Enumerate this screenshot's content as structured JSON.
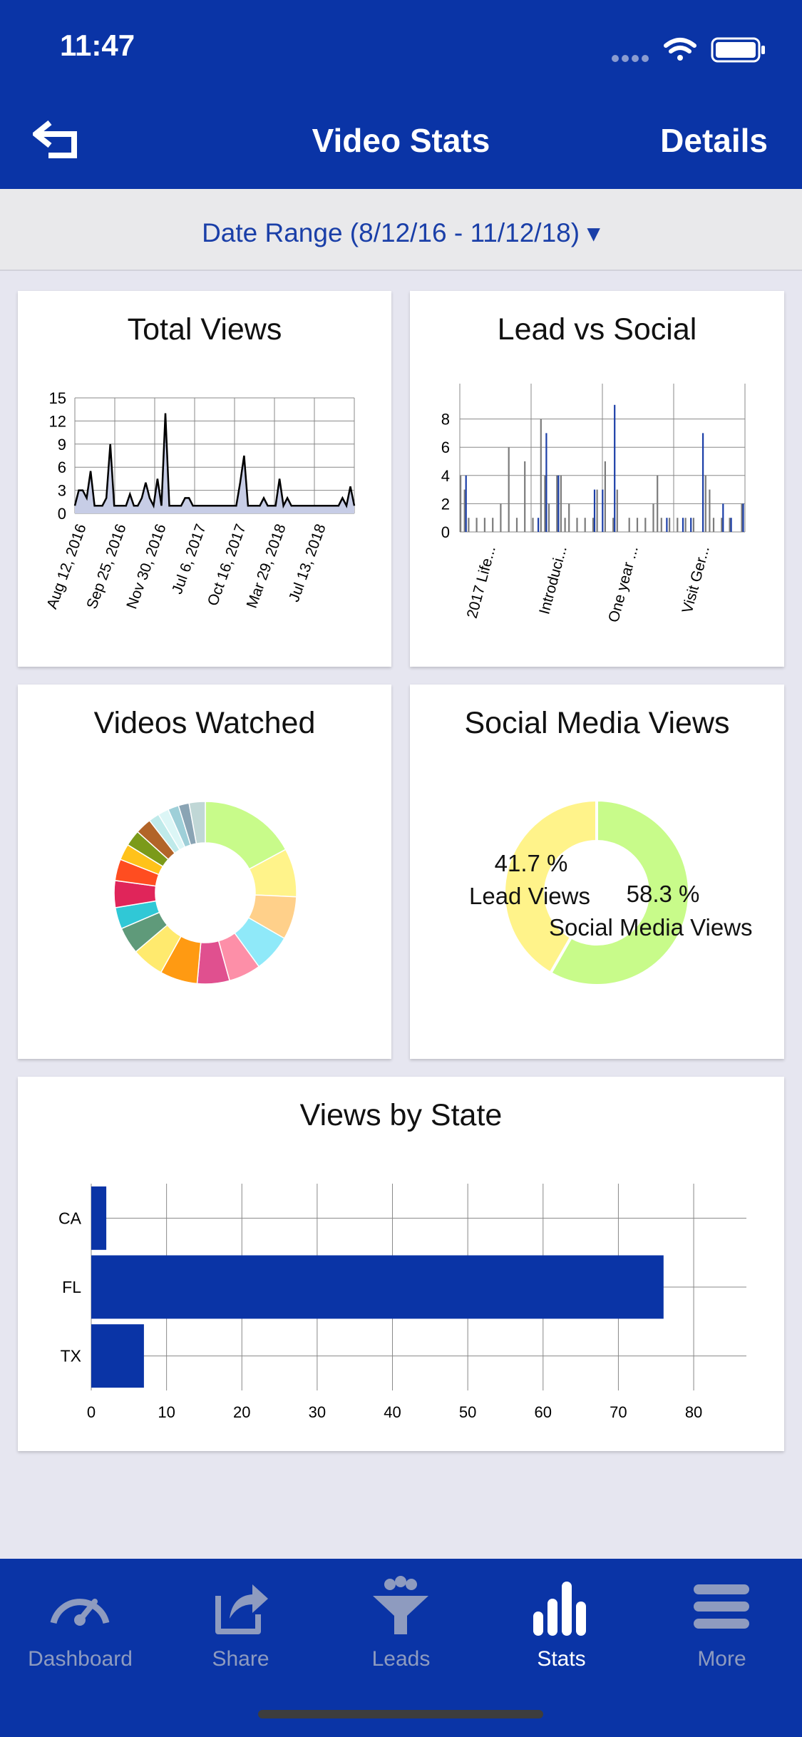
{
  "status_bar": {
    "time": "11:47"
  },
  "nav": {
    "title": "Video Stats",
    "right_label": "Details",
    "back_icon": "back-arrow-icon"
  },
  "date_range": {
    "label": "Date Range (8/12/16 - 11/12/18) ▾"
  },
  "cards": {
    "total_views": {
      "title": "Total Views"
    },
    "lead_vs_social": {
      "title": "Lead vs Social"
    },
    "videos_watched": {
      "title": "Videos Watched"
    },
    "social_media_views": {
      "title": "Social Media Views"
    },
    "views_by_state": {
      "title": "Views by State"
    }
  },
  "chart_data": [
    {
      "type": "area",
      "title": "Total Views",
      "y_ticks": [
        0,
        3,
        6,
        9,
        12,
        15
      ],
      "ylim": [
        0,
        15
      ],
      "x_tick_labels": [
        "Aug 12, 2016",
        "Sep 25, 2016",
        "Nov 30, 2016",
        "Jul 6, 2017",
        "Oct 16, 2017",
        "Mar 29, 2018",
        "Jul 13, 2018"
      ],
      "values": [
        1,
        3,
        3,
        2,
        5.5,
        1,
        1,
        1,
        2,
        9,
        1,
        1,
        1,
        1,
        2.5,
        1,
        1,
        2,
        4,
        2,
        1,
        4.5,
        1,
        13,
        1,
        1,
        1,
        1,
        2,
        2,
        1,
        1,
        1,
        1,
        1,
        1,
        1,
        1,
        1,
        1,
        1,
        1,
        4,
        7.5,
        1,
        1,
        1,
        1,
        2,
        1,
        1,
        1,
        4.5,
        1,
        2,
        1,
        1,
        1,
        1,
        1,
        1,
        1,
        1,
        1,
        1,
        1,
        1,
        1,
        2,
        1,
        3.5,
        1
      ],
      "colors": {
        "fill": "#c7cde6",
        "line": "#000000"
      }
    },
    {
      "type": "bar",
      "title": "Lead vs Social",
      "y_ticks": [
        0,
        2,
        4,
        6,
        8
      ],
      "ylim": [
        0,
        10
      ],
      "x_tick_labels": [
        "2017 Life...",
        "Introduci...",
        "One year ...",
        "Visit Ger..."
      ],
      "series": [
        {
          "color": "#7c7c7c",
          "values": [
            4,
            3,
            1,
            0,
            1,
            0,
            1,
            0,
            1,
            0,
            2,
            0,
            6,
            0,
            1,
            0,
            5,
            0,
            1,
            0,
            8,
            4,
            2,
            0,
            4,
            4,
            1,
            2,
            0,
            1,
            0,
            1,
            0,
            1,
            3,
            0,
            5,
            0,
            1,
            3,
            0,
            0,
            1,
            0,
            1,
            0,
            1,
            0,
            2,
            4,
            1,
            0,
            1,
            0,
            1,
            0,
            1,
            0,
            1,
            0,
            0,
            4,
            3,
            1,
            0,
            1,
            0,
            1,
            0,
            0,
            2
          ]
        },
        {
          "color": "#1c3fa8",
          "values": [
            0,
            4,
            0,
            0,
            0,
            0,
            0,
            0,
            0,
            0,
            0,
            0,
            0,
            0,
            0,
            0,
            0,
            0,
            0,
            1,
            0,
            7,
            0,
            0,
            4,
            0,
            0,
            0,
            0,
            0,
            0,
            0,
            0,
            3,
            0,
            3,
            0,
            0,
            9,
            0,
            0,
            0,
            0,
            0,
            0,
            0,
            0,
            0,
            0,
            0,
            0,
            1,
            0,
            0,
            0,
            1,
            0,
            1,
            0,
            0,
            7,
            0,
            0,
            0,
            0,
            2,
            0,
            1,
            0,
            0,
            2
          ]
        }
      ]
    },
    {
      "type": "pie",
      "title": "Videos Watched",
      "donut": true,
      "values": [
        18,
        9,
        8,
        7,
        6,
        6,
        7,
        6,
        5,
        4,
        5,
        4,
        3,
        3,
        3,
        2,
        2,
        2,
        2,
        3
      ],
      "colors": [
        "#c8fb8a",
        "#fff38a",
        "#ffd08a",
        "#8fe9f9",
        "#fd8fa8",
        "#e0508f",
        "#ff9a12",
        "#ffea6e",
        "#5f9a7a",
        "#30c8d6",
        "#e0255a",
        "#ff4d20",
        "#ffc21a",
        "#7b9a1a",
        "#b26428",
        "#bfeaea",
        "#dcf6f6",
        "#9ecfd8",
        "#8aa4b4",
        "#c0d7d6"
      ]
    },
    {
      "type": "pie",
      "title": "Social Media Views",
      "donut": true,
      "slices": [
        {
          "label": "Lead Views",
          "value": 41.7,
          "display": "41.7 %",
          "color": "#fff38a"
        },
        {
          "label": "Social Media Views",
          "value": 58.3,
          "display": "58.3 %",
          "color": "#c8fb8a"
        }
      ]
    },
    {
      "type": "bar",
      "orientation": "horizontal",
      "title": "Views by State",
      "categories": [
        "CA",
        "FL",
        "TX"
      ],
      "values": [
        2,
        76,
        7
      ],
      "x_ticks": [
        0,
        10,
        20,
        30,
        40,
        50,
        60,
        70,
        80
      ],
      "xlim": [
        0,
        87
      ],
      "colors": {
        "bar": "#0a34a6"
      }
    }
  ],
  "tabbar": {
    "tabs": [
      {
        "label": "Dashboard",
        "icon": "speedometer-icon",
        "active": false
      },
      {
        "label": "Share",
        "icon": "share-icon",
        "active": false
      },
      {
        "label": "Leads",
        "icon": "leads-funnel-icon",
        "active": false
      },
      {
        "label": "Stats",
        "icon": "bar-chart-icon",
        "active": true
      },
      {
        "label": "More",
        "icon": "hamburger-menu-icon",
        "active": false
      }
    ]
  },
  "colors": {
    "brand": "#0a34a6",
    "link": "#1a3fa8",
    "inactive_tab": "#8e9bbf"
  }
}
